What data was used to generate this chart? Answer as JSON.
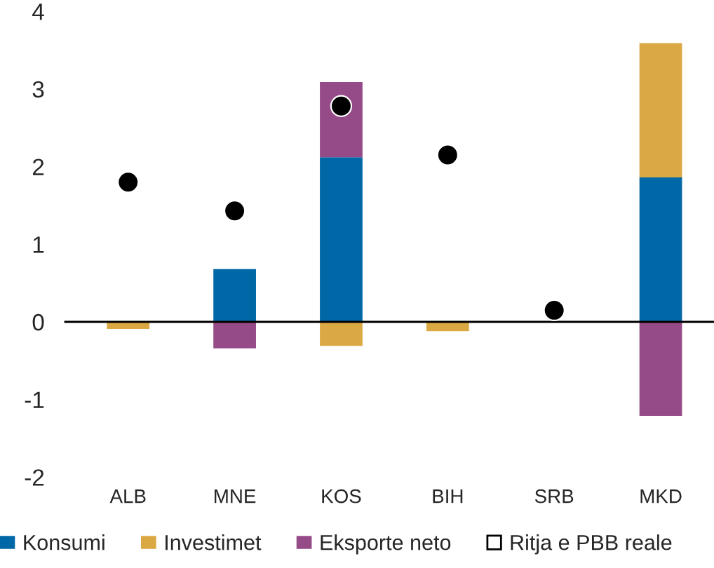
{
  "chart_data": {
    "type": "bar",
    "stacked": true,
    "categories": [
      "ALB",
      "MNE",
      "KOS",
      "BIH",
      "SRB",
      "MKD"
    ],
    "series": [
      {
        "name": "Konsumi",
        "color": "#0068a6",
        "values": [
          null,
          0.68,
          2.12,
          null,
          null,
          1.86
        ]
      },
      {
        "name": "Investimet",
        "color": "#dba944",
        "values": [
          -0.09,
          null,
          -0.31,
          -0.12,
          null,
          1.73
        ]
      },
      {
        "name": "Eksporte neto",
        "color": "#954b87",
        "values": [
          null,
          -0.34,
          0.97,
          null,
          null,
          -1.21
        ]
      },
      {
        "name": "Ritja e PBB reale",
        "color": "#000000",
        "type": "scatter",
        "marker": "circle",
        "values": [
          1.8,
          1.43,
          2.78,
          2.15,
          0.15,
          null
        ]
      }
    ],
    "ylim": [
      -2,
      4
    ],
    "yticks": [
      -2,
      -1,
      0,
      1,
      2,
      3,
      4
    ],
    "ref_lines": [
      {
        "axis": "y",
        "value": 0,
        "color": "#000000"
      }
    ],
    "grid": false,
    "legend": "bottom"
  }
}
